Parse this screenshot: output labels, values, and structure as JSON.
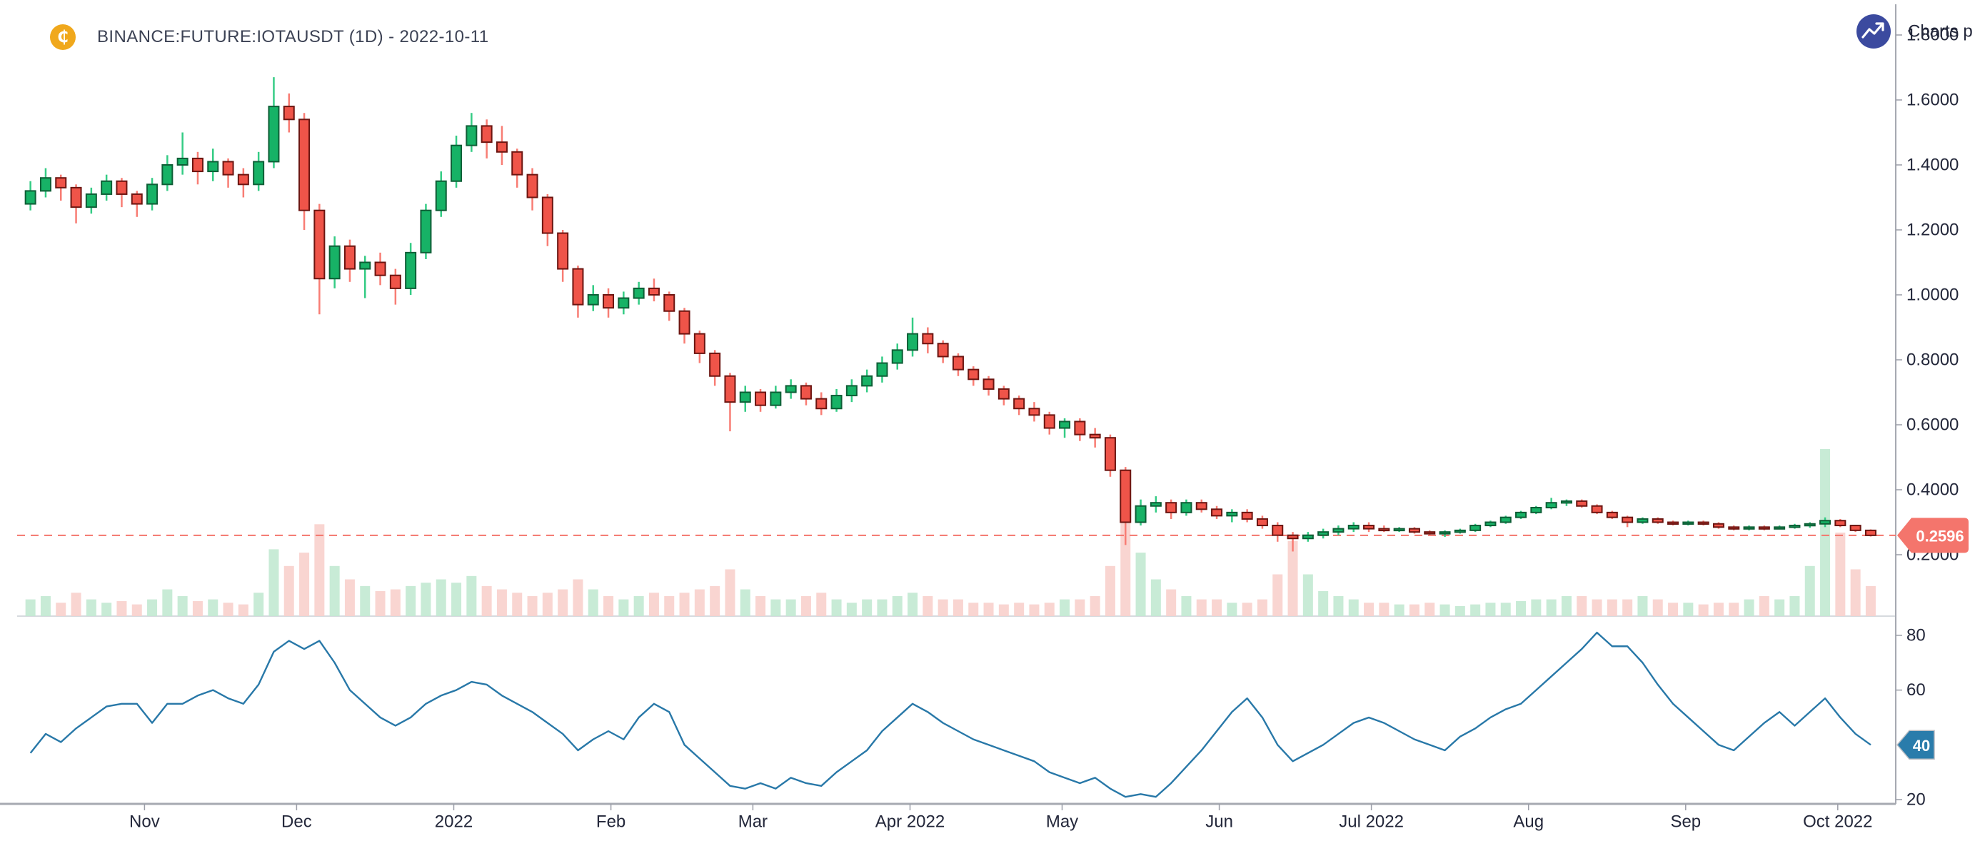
{
  "header": {
    "symbol_icon": {
      "glyph": "₵",
      "bg_color": "#f0a81c"
    },
    "title": "BINANCE:FUTURE:IOTAUSDT (1D) - 2022-10-11"
  },
  "watermark": {
    "label": "Charts p",
    "icon": "trending-up-icon",
    "circle_color": "#3b4a9f",
    "text_color": "#23273a"
  },
  "price_axis": {
    "ticks": [
      {
        "label": "1.8000",
        "value": 1.8
      },
      {
        "label": "1.6000",
        "value": 1.6
      },
      {
        "label": "1.4000",
        "value": 1.4
      },
      {
        "label": "1.2000",
        "value": 1.2
      },
      {
        "label": "1.0000",
        "value": 1.0
      },
      {
        "label": "0.8000",
        "value": 0.8
      },
      {
        "label": "0.6000",
        "value": 0.6
      },
      {
        "label": "0.4000",
        "value": 0.4
      },
      {
        "label": "0.2000",
        "value": 0.2
      }
    ]
  },
  "last_price": {
    "label": "0.2596",
    "value": 0.2596,
    "tag_color": "#f4756c",
    "line_color": "#f4756c"
  },
  "indicator_axis": {
    "ticks": [
      {
        "label": "80",
        "value": 80
      },
      {
        "label": "60",
        "value": 60
      },
      {
        "label": "20",
        "value": 20
      }
    ],
    "last": {
      "label": "40",
      "value": 40,
      "badge_color": "#2a7cab"
    }
  },
  "time_axis": {
    "ticks": [
      {
        "label": "Nov",
        "day": 24
      },
      {
        "label": "Dec",
        "day": 54
      },
      {
        "label": "2022",
        "day": 85
      },
      {
        "label": "Feb",
        "day": 116
      },
      {
        "label": "Mar",
        "day": 144
      },
      {
        "label": "Apr 2022",
        "day": 175
      },
      {
        "label": "May",
        "day": 205
      },
      {
        "label": "Jun",
        "day": 236
      },
      {
        "label": "Jul 2022",
        "day": 266
      },
      {
        "label": "Aug",
        "day": 297
      },
      {
        "label": "Sep",
        "day": 328
      },
      {
        "label": "Oct 2022",
        "day": 358
      }
    ]
  },
  "chart_data": {
    "type": "candlestick",
    "title": "BINANCE:FUTURE:IOTAUSDT (1D) - 2022-10-11",
    "start_date": "2021-10-11",
    "interval_days": 3,
    "price_axis_range": [
      0.2,
      1.8
    ],
    "indicator_axis_range": [
      20,
      80
    ],
    "grid": false,
    "legend": false,
    "last_close": 0.2596,
    "indicator_last_value": 40,
    "candles_ohlc": [
      [
        1.28,
        1.35,
        1.26,
        1.32
      ],
      [
        1.32,
        1.39,
        1.3,
        1.36
      ],
      [
        1.36,
        1.37,
        1.29,
        1.33
      ],
      [
        1.33,
        1.34,
        1.22,
        1.27
      ],
      [
        1.27,
        1.33,
        1.25,
        1.31
      ],
      [
        1.31,
        1.37,
        1.29,
        1.35
      ],
      [
        1.35,
        1.36,
        1.27,
        1.31
      ],
      [
        1.31,
        1.32,
        1.24,
        1.28
      ],
      [
        1.28,
        1.36,
        1.26,
        1.34
      ],
      [
        1.34,
        1.43,
        1.32,
        1.4
      ],
      [
        1.4,
        1.5,
        1.37,
        1.42
      ],
      [
        1.42,
        1.44,
        1.34,
        1.38
      ],
      [
        1.38,
        1.45,
        1.35,
        1.41
      ],
      [
        1.41,
        1.42,
        1.33,
        1.37
      ],
      [
        1.37,
        1.39,
        1.3,
        1.34
      ],
      [
        1.34,
        1.44,
        1.32,
        1.41
      ],
      [
        1.41,
        1.67,
        1.39,
        1.58
      ],
      [
        1.58,
        1.62,
        1.5,
        1.54
      ],
      [
        1.54,
        1.56,
        1.2,
        1.26
      ],
      [
        1.26,
        1.28,
        0.94,
        1.05
      ],
      [
        1.05,
        1.18,
        1.02,
        1.15
      ],
      [
        1.15,
        1.17,
        1.04,
        1.08
      ],
      [
        1.08,
        1.12,
        0.99,
        1.1
      ],
      [
        1.1,
        1.13,
        1.03,
        1.06
      ],
      [
        1.06,
        1.08,
        0.97,
        1.02
      ],
      [
        1.02,
        1.16,
        1.0,
        1.13
      ],
      [
        1.13,
        1.28,
        1.11,
        1.26
      ],
      [
        1.26,
        1.38,
        1.24,
        1.35
      ],
      [
        1.35,
        1.49,
        1.33,
        1.46
      ],
      [
        1.46,
        1.56,
        1.44,
        1.52
      ],
      [
        1.52,
        1.54,
        1.42,
        1.47
      ],
      [
        1.47,
        1.52,
        1.4,
        1.44
      ],
      [
        1.44,
        1.45,
        1.33,
        1.37
      ],
      [
        1.37,
        1.39,
        1.26,
        1.3
      ],
      [
        1.3,
        1.31,
        1.15,
        1.19
      ],
      [
        1.19,
        1.2,
        1.04,
        1.08
      ],
      [
        1.08,
        1.09,
        0.93,
        0.97
      ],
      [
        0.97,
        1.03,
        0.95,
        1.0
      ],
      [
        1.0,
        1.02,
        0.93,
        0.96
      ],
      [
        0.96,
        1.01,
        0.94,
        0.99
      ],
      [
        0.99,
        1.04,
        0.97,
        1.02
      ],
      [
        1.02,
        1.05,
        0.98,
        1.0
      ],
      [
        1.0,
        1.01,
        0.92,
        0.95
      ],
      [
        0.95,
        0.96,
        0.85,
        0.88
      ],
      [
        0.88,
        0.89,
        0.79,
        0.82
      ],
      [
        0.82,
        0.83,
        0.72,
        0.75
      ],
      [
        0.75,
        0.76,
        0.58,
        0.67
      ],
      [
        0.67,
        0.72,
        0.64,
        0.7
      ],
      [
        0.7,
        0.71,
        0.64,
        0.66
      ],
      [
        0.66,
        0.72,
        0.65,
        0.7
      ],
      [
        0.7,
        0.74,
        0.68,
        0.72
      ],
      [
        0.72,
        0.73,
        0.66,
        0.68
      ],
      [
        0.68,
        0.7,
        0.63,
        0.65
      ],
      [
        0.65,
        0.71,
        0.64,
        0.69
      ],
      [
        0.69,
        0.74,
        0.67,
        0.72
      ],
      [
        0.72,
        0.77,
        0.7,
        0.75
      ],
      [
        0.75,
        0.81,
        0.73,
        0.79
      ],
      [
        0.79,
        0.85,
        0.77,
        0.83
      ],
      [
        0.83,
        0.93,
        0.81,
        0.88
      ],
      [
        0.88,
        0.9,
        0.82,
        0.85
      ],
      [
        0.85,
        0.86,
        0.79,
        0.81
      ],
      [
        0.81,
        0.82,
        0.75,
        0.77
      ],
      [
        0.77,
        0.78,
        0.72,
        0.74
      ],
      [
        0.74,
        0.75,
        0.69,
        0.71
      ],
      [
        0.71,
        0.72,
        0.66,
        0.68
      ],
      [
        0.68,
        0.69,
        0.63,
        0.65
      ],
      [
        0.65,
        0.67,
        0.61,
        0.63
      ],
      [
        0.63,
        0.64,
        0.57,
        0.59
      ],
      [
        0.59,
        0.62,
        0.56,
        0.61
      ],
      [
        0.61,
        0.62,
        0.55,
        0.57
      ],
      [
        0.57,
        0.59,
        0.53,
        0.56
      ],
      [
        0.56,
        0.57,
        0.44,
        0.46
      ],
      [
        0.46,
        0.47,
        0.23,
        0.3
      ],
      [
        0.3,
        0.37,
        0.29,
        0.35
      ],
      [
        0.35,
        0.38,
        0.33,
        0.36
      ],
      [
        0.36,
        0.37,
        0.31,
        0.33
      ],
      [
        0.33,
        0.37,
        0.32,
        0.36
      ],
      [
        0.36,
        0.37,
        0.33,
        0.34
      ],
      [
        0.34,
        0.35,
        0.31,
        0.32
      ],
      [
        0.32,
        0.34,
        0.3,
        0.33
      ],
      [
        0.33,
        0.34,
        0.3,
        0.31
      ],
      [
        0.31,
        0.32,
        0.28,
        0.29
      ],
      [
        0.29,
        0.3,
        0.24,
        0.26
      ],
      [
        0.26,
        0.27,
        0.21,
        0.25
      ],
      [
        0.25,
        0.27,
        0.24,
        0.26
      ],
      [
        0.26,
        0.28,
        0.25,
        0.27
      ],
      [
        0.27,
        0.29,
        0.26,
        0.28
      ],
      [
        0.28,
        0.3,
        0.27,
        0.29
      ],
      [
        0.29,
        0.3,
        0.27,
        0.28
      ],
      [
        0.28,
        0.29,
        0.27,
        0.275
      ],
      [
        0.275,
        0.285,
        0.27,
        0.28
      ],
      [
        0.28,
        0.285,
        0.265,
        0.27
      ],
      [
        0.27,
        0.275,
        0.26,
        0.265
      ],
      [
        0.265,
        0.275,
        0.255,
        0.27
      ],
      [
        0.27,
        0.28,
        0.265,
        0.275
      ],
      [
        0.275,
        0.295,
        0.27,
        0.29
      ],
      [
        0.29,
        0.305,
        0.285,
        0.3
      ],
      [
        0.3,
        0.32,
        0.295,
        0.315
      ],
      [
        0.315,
        0.335,
        0.31,
        0.33
      ],
      [
        0.33,
        0.35,
        0.325,
        0.345
      ],
      [
        0.345,
        0.375,
        0.34,
        0.36
      ],
      [
        0.36,
        0.37,
        0.35,
        0.365
      ],
      [
        0.365,
        0.37,
        0.345,
        0.35
      ],
      [
        0.35,
        0.355,
        0.325,
        0.33
      ],
      [
        0.33,
        0.335,
        0.31,
        0.315
      ],
      [
        0.315,
        0.32,
        0.285,
        0.3
      ],
      [
        0.3,
        0.315,
        0.295,
        0.31
      ],
      [
        0.31,
        0.315,
        0.295,
        0.3
      ],
      [
        0.3,
        0.305,
        0.29,
        0.295
      ],
      [
        0.295,
        0.305,
        0.29,
        0.3
      ],
      [
        0.3,
        0.305,
        0.29,
        0.295
      ],
      [
        0.295,
        0.3,
        0.28,
        0.285
      ],
      [
        0.285,
        0.29,
        0.275,
        0.28
      ],
      [
        0.28,
        0.29,
        0.275,
        0.285
      ],
      [
        0.285,
        0.29,
        0.275,
        0.28
      ],
      [
        0.28,
        0.29,
        0.278,
        0.285
      ],
      [
        0.285,
        0.295,
        0.28,
        0.29
      ],
      [
        0.29,
        0.3,
        0.283,
        0.295
      ],
      [
        0.295,
        0.315,
        0.285,
        0.305
      ],
      [
        0.305,
        0.31,
        0.285,
        0.29
      ],
      [
        0.29,
        0.292,
        0.27,
        0.275
      ],
      [
        0.275,
        0.278,
        0.256,
        0.2596
      ]
    ],
    "volume_rel": [
      0.1,
      0.12,
      0.08,
      0.14,
      0.1,
      0.08,
      0.09,
      0.07,
      0.1,
      0.16,
      0.12,
      0.09,
      0.1,
      0.08,
      0.07,
      0.14,
      0.4,
      0.3,
      0.38,
      0.55,
      0.3,
      0.22,
      0.18,
      0.15,
      0.16,
      0.18,
      0.2,
      0.22,
      0.2,
      0.24,
      0.18,
      0.16,
      0.14,
      0.12,
      0.14,
      0.16,
      0.22,
      0.16,
      0.12,
      0.1,
      0.12,
      0.14,
      0.12,
      0.14,
      0.16,
      0.18,
      0.28,
      0.16,
      0.12,
      0.1,
      0.1,
      0.12,
      0.14,
      0.1,
      0.08,
      0.1,
      0.1,
      0.12,
      0.14,
      0.12,
      0.1,
      0.1,
      0.08,
      0.08,
      0.07,
      0.08,
      0.07,
      0.08,
      0.1,
      0.1,
      0.12,
      0.3,
      0.62,
      0.38,
      0.22,
      0.16,
      0.12,
      0.1,
      0.1,
      0.08,
      0.08,
      0.1,
      0.25,
      0.45,
      0.25,
      0.15,
      0.12,
      0.1,
      0.08,
      0.08,
      0.07,
      0.07,
      0.08,
      0.07,
      0.06,
      0.07,
      0.08,
      0.08,
      0.09,
      0.1,
      0.1,
      0.12,
      0.12,
      0.1,
      0.1,
      0.1,
      0.12,
      0.1,
      0.08,
      0.08,
      0.07,
      0.08,
      0.08,
      0.1,
      0.12,
      0.1,
      0.12,
      0.3,
      1.0,
      0.5,
      0.28,
      0.18
    ],
    "indicator_values": [
      37,
      44,
      41,
      46,
      50,
      54,
      55,
      55,
      48,
      55,
      55,
      58,
      60,
      57,
      55,
      62,
      74,
      78,
      75,
      78,
      70,
      60,
      55,
      50,
      47,
      50,
      55,
      58,
      60,
      63,
      62,
      58,
      55,
      52,
      48,
      44,
      38,
      42,
      45,
      42,
      50,
      55,
      52,
      40,
      35,
      30,
      25,
      24,
      26,
      24,
      28,
      26,
      25,
      30,
      34,
      38,
      45,
      50,
      55,
      52,
      48,
      45,
      42,
      40,
      38,
      36,
      34,
      30,
      28,
      26,
      28,
      24,
      21,
      22,
      21,
      26,
      32,
      38,
      45,
      52,
      57,
      50,
      40,
      34,
      37,
      40,
      44,
      48,
      50,
      48,
      45,
      42,
      40,
      38,
      43,
      46,
      50,
      53,
      55,
      60,
      65,
      70,
      75,
      81,
      76,
      76,
      70,
      62,
      55,
      50,
      45,
      40,
      38,
      43,
      48,
      52,
      47,
      52,
      57,
      50,
      44,
      40
    ],
    "colors": {
      "up_body": "#17b266",
      "up_border": "#0e5e36",
      "up_wick": "#35cc85",
      "down_body": "#ef5449",
      "down_border": "#6b1511",
      "down_wick": "#f87d74",
      "volume_up": "#c2e9d2",
      "volume_down": "#f8d0cc",
      "indicator_line": "#2878a8",
      "axis_text": "#23273a",
      "spine": "#a6a9b1"
    }
  }
}
